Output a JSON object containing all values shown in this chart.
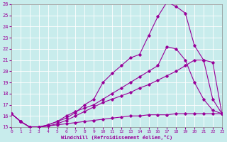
{
  "xlabel": "Windchill (Refroidissement éolien,°C)",
  "xlim": [
    0,
    23
  ],
  "ylim": [
    15,
    26
  ],
  "ytick_vals": [
    15,
    16,
    17,
    18,
    19,
    20,
    21,
    22,
    23,
    24,
    25,
    26
  ],
  "xtick_vals": [
    0,
    1,
    2,
    3,
    4,
    5,
    6,
    7,
    8,
    9,
    10,
    11,
    12,
    13,
    14,
    15,
    16,
    17,
    18,
    19,
    20,
    21,
    22,
    23
  ],
  "bg_color": "#c8ecec",
  "line_color": "#990099",
  "grid_color": "#aaaaaa",
  "lines": [
    {
      "x": [
        0,
        1,
        2,
        3,
        4,
        5,
        6,
        7,
        8,
        9,
        10,
        11,
        12,
        13,
        14,
        15,
        16,
        17,
        18,
        19,
        20,
        21,
        22,
        23
      ],
      "y": [
        16.2,
        15.5,
        15.0,
        15.0,
        15.1,
        15.2,
        15.3,
        15.4,
        15.5,
        15.6,
        15.7,
        15.8,
        15.9,
        16.0,
        16.0,
        16.1,
        16.1,
        16.1,
        16.2,
        16.2,
        16.2,
        16.2,
        16.2,
        16.2
      ]
    },
    {
      "x": [
        0,
        1,
        2,
        3,
        4,
        5,
        6,
        7,
        8,
        9,
        10,
        11,
        12,
        13,
        14,
        15,
        16,
        17,
        18,
        19,
        20,
        21,
        22,
        23
      ],
      "y": [
        16.2,
        15.5,
        15.0,
        15.0,
        15.1,
        15.3,
        15.6,
        16.0,
        16.4,
        16.8,
        17.2,
        17.5,
        17.8,
        18.1,
        18.5,
        18.8,
        19.2,
        19.6,
        20.0,
        20.5,
        21.0,
        21.0,
        20.8,
        16.2
      ]
    },
    {
      "x": [
        0,
        1,
        2,
        3,
        4,
        5,
        6,
        7,
        8,
        9,
        10,
        11,
        12,
        13,
        14,
        15,
        16,
        17,
        18,
        19,
        20,
        21,
        22,
        23
      ],
      "y": [
        16.2,
        15.5,
        15.0,
        15.0,
        15.2,
        15.5,
        16.0,
        16.4,
        16.7,
        17.0,
        17.5,
        18.0,
        18.5,
        19.0,
        19.5,
        20.0,
        20.5,
        22.2,
        22.0,
        21.0,
        19.0,
        17.5,
        16.5,
        16.2
      ]
    },
    {
      "x": [
        0,
        1,
        2,
        3,
        4,
        5,
        6,
        7,
        8,
        9,
        10,
        11,
        12,
        13,
        14,
        15,
        16,
        17,
        18,
        19,
        20,
        21,
        22,
        23
      ],
      "y": [
        16.2,
        15.5,
        15.0,
        15.0,
        15.2,
        15.5,
        15.8,
        16.3,
        17.0,
        17.5,
        19.0,
        19.8,
        20.5,
        21.2,
        21.5,
        23.2,
        24.9,
        26.2,
        25.8,
        25.2,
        22.3,
        21.0,
        17.5,
        16.2
      ]
    }
  ]
}
